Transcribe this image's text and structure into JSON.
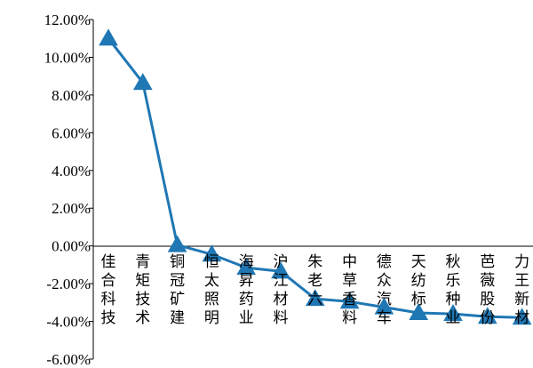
{
  "chart_data": {
    "type": "line",
    "categories": [
      "佳合科技",
      "青矩技术",
      "铜冠矿建",
      "恒太照明",
      "海昇药业",
      "沪江材料",
      "朱老六",
      "中草香料",
      "德众汽车",
      "天纺标",
      "秋乐种业",
      "芭薇股份",
      "力王新材"
    ],
    "values": [
      11.0,
      8.65,
      0.05,
      -0.45,
      -1.15,
      -1.35,
      -2.8,
      -2.95,
      -3.25,
      -3.55,
      -3.6,
      -3.75,
      -3.8
    ],
    "ylim": [
      -6,
      12
    ],
    "yticks": [
      -6,
      -4,
      -2,
      0,
      2,
      4,
      6,
      8,
      10,
      12
    ],
    "ytick_labels": [
      "-6.00%",
      "-4.00%",
      "-2.00%",
      "0.00%",
      "2.00%",
      "4.00%",
      "6.00%",
      "8.00%",
      "10.00%",
      "12.00%"
    ],
    "marker": "triangle",
    "line_color": "#1f77b4",
    "grid": false,
    "title": "",
    "xlabel": "",
    "ylabel": ""
  }
}
